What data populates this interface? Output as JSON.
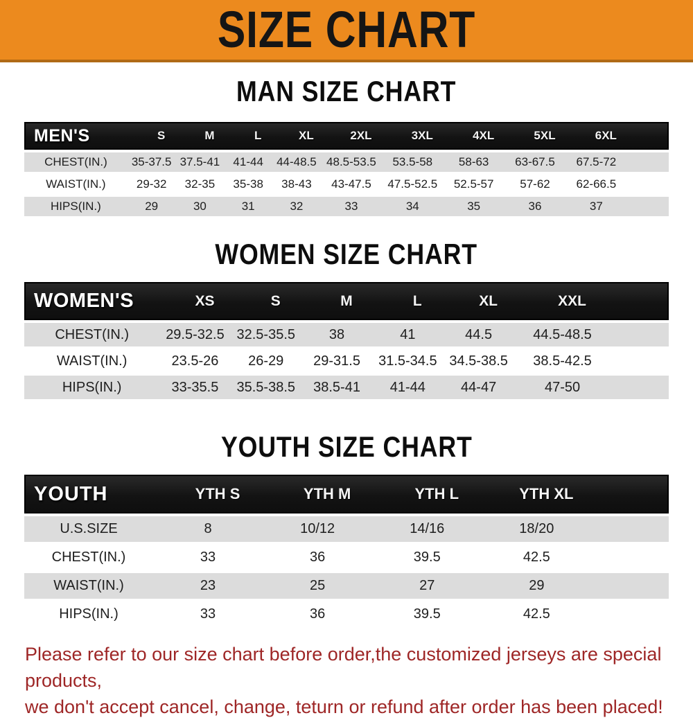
{
  "banner": {
    "title": "SIZE CHART"
  },
  "headings": {
    "man": "MAN SIZE CHART",
    "women": "WOMEN SIZE CHART",
    "youth": "YOUTH SIZE CHART"
  },
  "men": {
    "header": [
      "MEN'S",
      "S",
      "M",
      "L",
      "XL",
      "2XL",
      "3XL",
      "4XL",
      "5XL",
      "6XL"
    ],
    "rows": [
      {
        "label": "CHEST(IN.)",
        "values": [
          "35-37.5",
          "37.5-41",
          "41-44",
          "44-48.5",
          "48.5-53.5",
          "53.5-58",
          "58-63",
          "63-67.5",
          "67.5-72"
        ]
      },
      {
        "label": "WAIST(IN.)",
        "values": [
          "29-32",
          "32-35",
          "35-38",
          "38-43",
          "43-47.5",
          "47.5-52.5",
          "52.5-57",
          "57-62",
          "62-66.5"
        ]
      },
      {
        "label": "HIPS(IN.)",
        "values": [
          "29",
          "30",
          "31",
          "32",
          "33",
          "34",
          "35",
          "36",
          "37"
        ]
      }
    ]
  },
  "women": {
    "header": [
      "WOMEN'S",
      "XS",
      "S",
      "M",
      "L",
      "XL",
      "XXL"
    ],
    "rows": [
      {
        "label": "CHEST(IN.)",
        "values": [
          "29.5-32.5",
          "32.5-35.5",
          "38",
          "41",
          "44.5",
          "44.5-48.5"
        ]
      },
      {
        "label": "WAIST(IN.)",
        "values": [
          "23.5-26",
          "26-29",
          "29-31.5",
          "31.5-34.5",
          "34.5-38.5",
          "38.5-42.5"
        ]
      },
      {
        "label": "HIPS(IN.)",
        "values": [
          "33-35.5",
          "35.5-38.5",
          "38.5-41",
          "41-44",
          "44-47",
          "47-50"
        ]
      }
    ]
  },
  "youth": {
    "header": [
      "YOUTH",
      "YTH S",
      "YTH M",
      "YTH L",
      "YTH XL"
    ],
    "rows": [
      {
        "label": "U.S.SIZE",
        "values": [
          "8",
          "10/12",
          "14/16",
          "18/20"
        ]
      },
      {
        "label": "CHEST(IN.)",
        "values": [
          "33",
          "36",
          "39.5",
          "42.5"
        ]
      },
      {
        "label": "WAIST(IN.)",
        "values": [
          "23",
          "25",
          "27",
          "29"
        ]
      },
      {
        "label": "HIPS(IN.)",
        "values": [
          "33",
          "36",
          "39.5",
          "42.5"
        ]
      }
    ]
  },
  "disclaimer": {
    "line1": "Please refer to our size chart before order,the customized jerseys are special products,",
    "line2": "we don't accept cancel, change, teturn or refund after order has been placed!"
  },
  "colors": {
    "banner_bg": "#EC8A1E",
    "banner_border": "#B06A15",
    "header_bar": "#191919",
    "row_alt": "#DCDCDC",
    "disclaimer_text": "#9E2626"
  }
}
